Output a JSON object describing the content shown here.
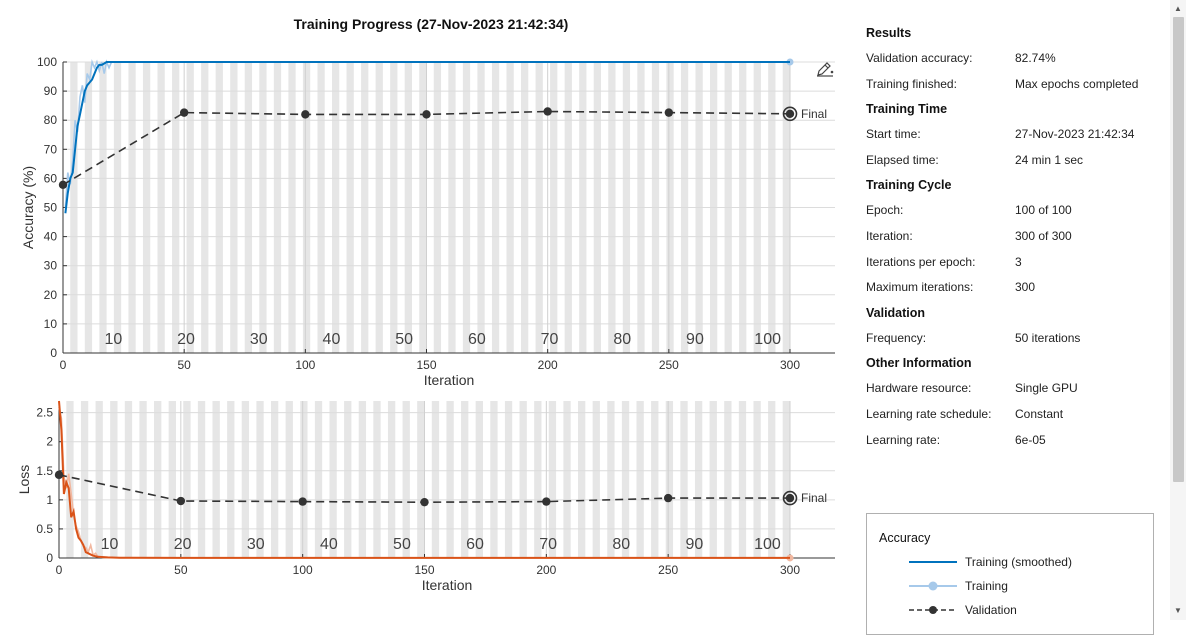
{
  "header": {
    "title": "Training Progress (27-Nov-2023 21:42:34)"
  },
  "colors": {
    "training_acc": "#0072bd",
    "training_acc_raw": "#a6c9ea",
    "training_loss": "#d95319",
    "training_loss_raw": "#f2b8a0",
    "validation": "#333333",
    "epoch_band": "#e6e6e6"
  },
  "chart_data": [
    {
      "type": "line",
      "name": "accuracy",
      "xlabel": "Iteration",
      "ylabel": "Accuracy (%)",
      "xlim": [
        0,
        300
      ],
      "ylim": [
        0,
        100
      ],
      "xticks": [
        0,
        50,
        100,
        150,
        200,
        250,
        300
      ],
      "yticks": [
        0,
        10,
        20,
        30,
        40,
        50,
        60,
        70,
        80,
        90,
        100
      ],
      "epoch_labels": [
        "10",
        "20",
        "30",
        "40",
        "50",
        "60",
        "70",
        "80",
        "90",
        "100"
      ],
      "epochs": 100,
      "grid": true,
      "series": [
        {
          "name": "Training (smoothed)",
          "style": "solid",
          "x": [
            1,
            2,
            3,
            4,
            5,
            6,
            7,
            8,
            9,
            10,
            11,
            12,
            13,
            14,
            15,
            16,
            17,
            18,
            20,
            25,
            30,
            50,
            100,
            150,
            200,
            250,
            300
          ],
          "y": [
            48,
            55,
            60,
            62,
            70,
            78,
            82,
            86,
            90,
            92,
            93,
            94,
            96,
            98,
            99,
            99,
            99.5,
            100,
            100,
            100,
            100,
            100,
            100,
            100,
            100,
            100,
            100
          ]
        },
        {
          "name": "Training",
          "style": "raw",
          "x": [
            1,
            2,
            3,
            4,
            5,
            6,
            7,
            8,
            9,
            10,
            11,
            12,
            13,
            14,
            15,
            16,
            17,
            18,
            19,
            20,
            22,
            25,
            300
          ],
          "y": [
            50,
            62,
            58,
            66,
            80,
            76,
            88,
            92,
            86,
            96,
            94,
            100,
            98,
            100,
            97,
            100,
            96,
            100,
            98,
            100,
            100,
            100,
            100
          ]
        },
        {
          "name": "Validation",
          "style": "dashed-marker",
          "x": [
            0,
            50,
            100,
            150,
            200,
            250,
            300
          ],
          "y": [
            57.8,
            82.6,
            82.0,
            82.0,
            83.0,
            82.6,
            82.2
          ]
        }
      ],
      "final_label": "Final"
    },
    {
      "type": "line",
      "name": "loss",
      "xlabel": "Iteration",
      "ylabel": "Loss",
      "xlim": [
        0,
        300
      ],
      "ylim": [
        0,
        2.7
      ],
      "xticks": [
        0,
        50,
        100,
        150,
        200,
        250,
        300
      ],
      "yticks": [
        0,
        0.5,
        1,
        1.5,
        2,
        2.5
      ],
      "ytick_labels": [
        "0",
        "0.5",
        "1",
        "1.5",
        "2",
        "2.5"
      ],
      "epoch_labels": [
        "10",
        "20",
        "30",
        "40",
        "50",
        "60",
        "70",
        "80",
        "90",
        "100"
      ],
      "epochs": 100,
      "grid": true,
      "series": [
        {
          "name": "Training (smoothed)",
          "style": "solid",
          "x": [
            0,
            1,
            2,
            3,
            4,
            5,
            6,
            7,
            8,
            9,
            10,
            11,
            12,
            14,
            16,
            20,
            25,
            30,
            50,
            100,
            150,
            200,
            250,
            300
          ],
          "y": [
            2.7,
            2.2,
            1.1,
            1.3,
            1.2,
            0.7,
            0.8,
            0.5,
            0.35,
            0.3,
            0.22,
            0.1,
            0.08,
            0.04,
            0.02,
            0.01,
            0.005,
            0.003,
            0.002,
            0.001,
            0.001,
            0.001,
            0.001,
            0.001
          ]
        },
        {
          "name": "Training",
          "style": "raw",
          "x": [
            0,
            1,
            2,
            3,
            4,
            5,
            6,
            7,
            8,
            9,
            10,
            11,
            12,
            13,
            14,
            15,
            16,
            18,
            20,
            25,
            300
          ],
          "y": [
            2.6,
            2.4,
            1.4,
            1.2,
            1.45,
            1.1,
            0.75,
            0.55,
            0.45,
            0.3,
            0.2,
            0.18,
            0.1,
            0.22,
            0.05,
            0.08,
            0.02,
            0.01,
            0.005,
            0.003,
            0.001
          ]
        },
        {
          "name": "Validation",
          "style": "dashed-marker",
          "x": [
            0,
            50,
            100,
            150,
            200,
            250,
            300
          ],
          "y": [
            1.43,
            0.98,
            0.97,
            0.96,
            0.97,
            1.03,
            1.03
          ]
        }
      ],
      "final_label": "Final"
    }
  ],
  "info": {
    "results": {
      "title": "Results",
      "rows": [
        {
          "k": "Validation accuracy:",
          "v": "82.74%"
        },
        {
          "k": "Training finished:",
          "v": "Max epochs completed"
        }
      ]
    },
    "time": {
      "title": "Training Time",
      "rows": [
        {
          "k": "Start time:",
          "v": "27-Nov-2023 21:42:34"
        },
        {
          "k": "Elapsed time:",
          "v": "24 min 1 sec"
        }
      ]
    },
    "cycle": {
      "title": "Training Cycle",
      "rows": [
        {
          "k": "Epoch:",
          "v": "100 of 100"
        },
        {
          "k": "Iteration:",
          "v": "300 of 300"
        },
        {
          "k": "Iterations per epoch:",
          "v": "3"
        },
        {
          "k": "Maximum iterations:",
          "v": "300"
        }
      ]
    },
    "validation": {
      "title": "Validation",
      "rows": [
        {
          "k": "Frequency:",
          "v": "50 iterations"
        }
      ]
    },
    "other": {
      "title": "Other Information",
      "rows": [
        {
          "k": "Hardware resource:",
          "v": "Single GPU"
        },
        {
          "k": "Learning rate schedule:",
          "v": "Constant"
        },
        {
          "k": "Learning rate:",
          "v": "6e-05"
        }
      ]
    }
  },
  "legend": {
    "title": "Accuracy",
    "items": [
      {
        "label": "Training (smoothed)",
        "icon": "solid-line"
      },
      {
        "label": "Training",
        "icon": "line-with-circle"
      },
      {
        "label": "Validation",
        "icon": "dashed-line-with-dot"
      }
    ]
  },
  "icons": {
    "edit": "edit-pencil-icon"
  }
}
